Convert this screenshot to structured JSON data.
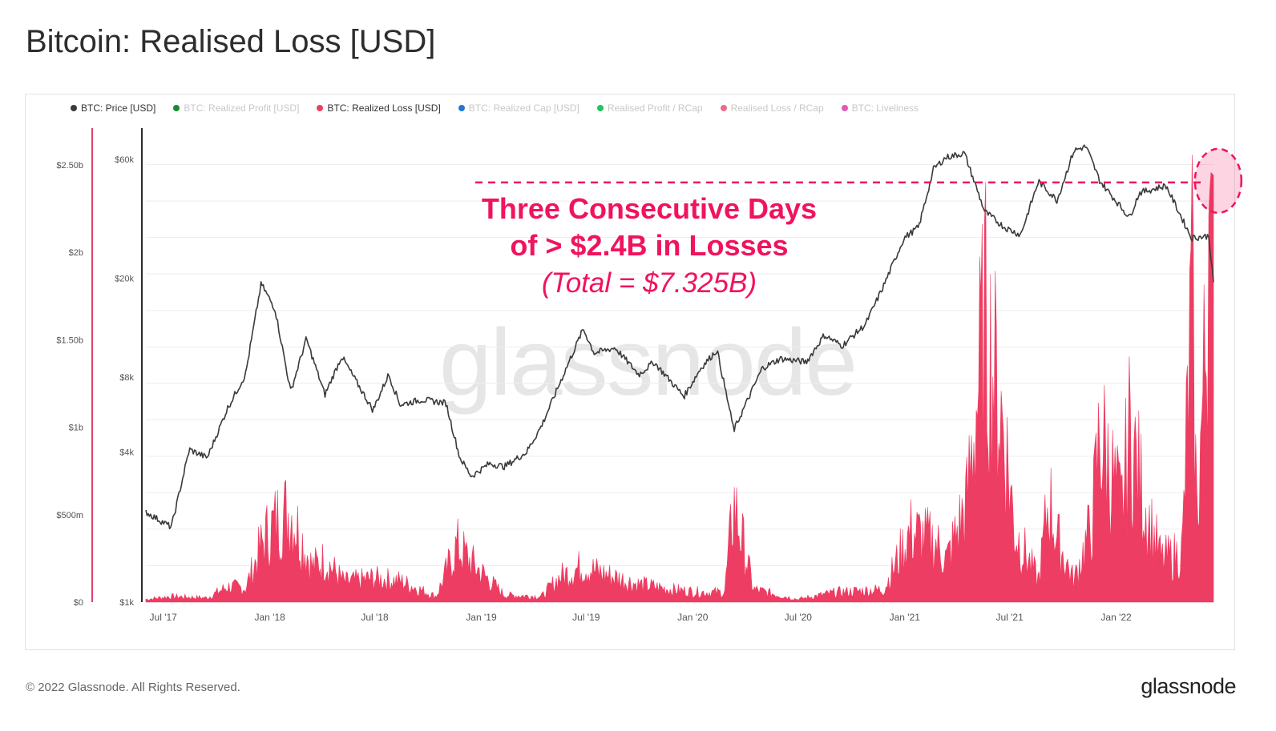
{
  "title": "Bitcoin: Realised Loss [USD]",
  "legend": [
    {
      "label": "BTC: Price [USD]",
      "color": "#3a3a3a",
      "active": true
    },
    {
      "label": "BTC: Realized Profit [USD]",
      "color": "#1a8a2e",
      "active": false
    },
    {
      "label": "BTC: Realized Loss [USD]",
      "color": "#ee3d62",
      "active": true
    },
    {
      "label": "BTC: Realized Cap [USD]",
      "color": "#1f78d1",
      "active": false
    },
    {
      "label": "Realised Profit / RCap",
      "color": "#22c55e",
      "active": false
    },
    {
      "label": "Realised Loss / RCap",
      "color": "#ec6a8c",
      "active": false
    },
    {
      "label": "BTC: Liveliness",
      "color": "#e05bb5",
      "active": false
    }
  ],
  "annotation": {
    "line1": "Three Consecutive Days",
    "line2": "of > $2.4B in Losses",
    "line3": "(Total = $7.325B)"
  },
  "watermark": "glassnode",
  "footer": {
    "copyright": "© 2022 Glassnode. All Rights Reserved.",
    "logo": "glassnode"
  },
  "colors": {
    "price_line": "#3a3a3a",
    "loss_area": "#ee3d62",
    "annotation": "#f0135e",
    "left_axis_line": "#e0406a"
  },
  "chart_data": {
    "type": "area",
    "x_tick_labels": [
      "Jul '17",
      "Jan '18",
      "Jul '18",
      "Jan '19",
      "Jul '19",
      "Jan '20",
      "Jul '20",
      "Jan '21",
      "Jul '21",
      "Jan '22"
    ],
    "x_range": [
      "2017-06-01",
      "2022-06-18"
    ],
    "y_left_ticks": [
      "$0",
      "$500m",
      "$1b",
      "$1.50b",
      "$2b",
      "$2.50b"
    ],
    "y_left_range": [
      0,
      2500000000
    ],
    "y_right_ticks": [
      "$1k",
      "$4k",
      "$8k",
      "$20k",
      "$60k"
    ],
    "y_right_scale": "log",
    "y_right_range": [
      1000,
      80000
    ],
    "grid": true,
    "legend_position": "top",
    "series": [
      {
        "name": "BTC: Price [USD]",
        "axis": "right",
        "points": [
          [
            "2017-06-01",
            2300
          ],
          [
            "2017-07-15",
            2000
          ],
          [
            "2017-08-15",
            4100
          ],
          [
            "2017-09-15",
            3800
          ],
          [
            "2017-10-20",
            6000
          ],
          [
            "2017-11-20",
            8200
          ],
          [
            "2017-12-17",
            19000
          ],
          [
            "2018-01-10",
            15000
          ],
          [
            "2018-02-06",
            7000
          ],
          [
            "2018-03-05",
            11400
          ],
          [
            "2018-04-06",
            6800
          ],
          [
            "2018-05-05",
            9700
          ],
          [
            "2018-06-28",
            5900
          ],
          [
            "2018-07-25",
            8200
          ],
          [
            "2018-08-14",
            6200
          ],
          [
            "2018-09-20",
            6500
          ],
          [
            "2018-11-01",
            6300
          ],
          [
            "2018-11-25",
            3800
          ],
          [
            "2018-12-15",
            3200
          ],
          [
            "2019-01-15",
            3600
          ],
          [
            "2019-02-10",
            3500
          ],
          [
            "2019-03-20",
            4000
          ],
          [
            "2019-04-15",
            5100
          ],
          [
            "2019-05-20",
            7900
          ],
          [
            "2019-06-26",
            12500
          ],
          [
            "2019-07-15",
            10000
          ],
          [
            "2019-08-20",
            10500
          ],
          [
            "2019-09-30",
            8200
          ],
          [
            "2019-10-26",
            9200
          ],
          [
            "2019-12-17",
            6700
          ],
          [
            "2020-01-15",
            8700
          ],
          [
            "2020-02-12",
            10300
          ],
          [
            "2020-03-12",
            4900
          ],
          [
            "2020-04-30",
            8700
          ],
          [
            "2020-06-01",
            9500
          ],
          [
            "2020-07-15",
            9200
          ],
          [
            "2020-08-15",
            11800
          ],
          [
            "2020-09-15",
            10700
          ],
          [
            "2020-10-25",
            13000
          ],
          [
            "2020-11-25",
            18500
          ],
          [
            "2020-12-31",
            29000
          ],
          [
            "2021-01-25",
            32000
          ],
          [
            "2021-02-20",
            55000
          ],
          [
            "2021-03-13",
            61000
          ],
          [
            "2021-04-14",
            63500
          ],
          [
            "2021-05-19",
            37000
          ],
          [
            "2021-06-22",
            32000
          ],
          [
            "2021-07-20",
            29800
          ],
          [
            "2021-08-20",
            49000
          ],
          [
            "2021-09-21",
            41000
          ],
          [
            "2021-10-20",
            65000
          ],
          [
            "2021-11-10",
            67500
          ],
          [
            "2021-12-04",
            49000
          ],
          [
            "2022-01-24",
            35000
          ],
          [
            "2022-02-10",
            44000
          ],
          [
            "2022-03-28",
            47000
          ],
          [
            "2022-05-11",
            29000
          ],
          [
            "2022-06-10",
            29500
          ],
          [
            "2022-06-18",
            19000
          ]
        ]
      },
      {
        "name": "BTC: Realized Loss [USD]",
        "axis": "left",
        "points": [
          [
            "2017-06-01",
            20000000
          ],
          [
            "2017-07-15",
            40000000
          ],
          [
            "2017-09-15",
            30000000
          ],
          [
            "2017-10-20",
            110000000
          ],
          [
            "2017-11-20",
            100000000
          ],
          [
            "2017-12-22",
            450000000
          ],
          [
            "2018-01-17",
            600000000
          ],
          [
            "2018-02-06",
            650000000
          ],
          [
            "2018-03-15",
            250000000
          ],
          [
            "2018-04-06",
            300000000
          ],
          [
            "2018-05-10",
            140000000
          ],
          [
            "2018-06-28",
            170000000
          ],
          [
            "2018-08-14",
            150000000
          ],
          [
            "2018-10-15",
            40000000
          ],
          [
            "2018-11-20",
            400000000
          ],
          [
            "2018-12-15",
            280000000
          ],
          [
            "2019-02-10",
            50000000
          ],
          [
            "2019-04-15",
            40000000
          ],
          [
            "2019-05-17",
            180000000
          ],
          [
            "2019-06-27",
            260000000
          ],
          [
            "2019-07-17",
            220000000
          ],
          [
            "2019-09-25",
            130000000
          ],
          [
            "2019-11-25",
            90000000
          ],
          [
            "2020-01-15",
            70000000
          ],
          [
            "2020-02-25",
            70000000
          ],
          [
            "2020-03-12",
            700000000
          ],
          [
            "2020-04-15",
            90000000
          ],
          [
            "2020-06-30",
            20000000
          ],
          [
            "2020-09-05",
            70000000
          ],
          [
            "2020-11-26",
            90000000
          ],
          [
            "2021-01-11",
            500000000
          ],
          [
            "2021-02-23",
            420000000
          ],
          [
            "2021-03-15",
            300000000
          ],
          [
            "2021-04-18",
            700000000
          ],
          [
            "2021-05-19",
            2000000000
          ],
          [
            "2021-06-22",
            1200000000
          ],
          [
            "2021-07-10",
            500000000
          ],
          [
            "2021-08-20",
            150000000
          ],
          [
            "2021-09-07",
            750000000
          ],
          [
            "2021-09-21",
            450000000
          ],
          [
            "2021-10-20",
            150000000
          ],
          [
            "2021-11-20",
            550000000
          ],
          [
            "2021-12-04",
            1200000000
          ],
          [
            "2022-01-10",
            650000000
          ],
          [
            "2022-01-24",
            1200000000
          ],
          [
            "2022-02-25",
            600000000
          ],
          [
            "2022-03-20",
            300000000
          ],
          [
            "2022-04-25",
            350000000
          ],
          [
            "2022-05-12",
            2200000000
          ],
          [
            "2022-05-20",
            600000000
          ],
          [
            "2022-06-13",
            2460000000
          ],
          [
            "2022-06-18",
            2440000000
          ]
        ]
      }
    ],
    "annotations": [
      {
        "type": "dashed-horizontal-line",
        "value_axis": "left",
        "value": 2400000000
      },
      {
        "type": "highlight-circle",
        "x": "2022-06-15",
        "value_axis": "left",
        "value": 2400000000
      }
    ]
  }
}
